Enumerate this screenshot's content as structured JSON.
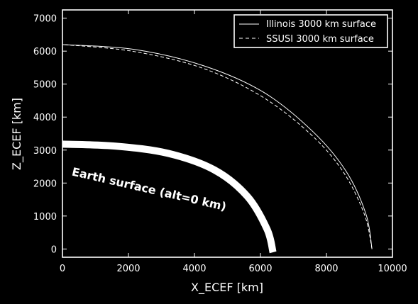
{
  "chart_data": {
    "type": "line",
    "xlabel": "X_ECEF [km]",
    "ylabel": "Z_ECEF [km]",
    "xlim": [
      0,
      10000
    ],
    "ylim": [
      -250,
      7250
    ],
    "xticks": [
      0,
      2000,
      4000,
      6000,
      8000,
      10000
    ],
    "yticks": [
      0,
      1000,
      2000,
      3000,
      4000,
      5000,
      6000,
      7000
    ],
    "grid": false,
    "legend_position": "top-right",
    "colors": {
      "background": "#000000",
      "foreground": "#ffffff"
    },
    "series": [
      {
        "name": "Illinois 3000 km surface",
        "style": "solid",
        "x": [
          9380,
          9200,
          8600,
          7600,
          6100,
          4300,
          2200,
          0
        ],
        "y": [
          0,
          1050,
          2350,
          3550,
          4750,
          5550,
          6050,
          6200
        ]
      },
      {
        "name": "SSUSI 3000 km surface",
        "style": "dashed",
        "x": [
          9380,
          9150,
          8500,
          7500,
          6000,
          4200,
          2100,
          0
        ],
        "y": [
          0,
          1050,
          2350,
          3500,
          4650,
          5500,
          6000,
          6200
        ]
      },
      {
        "name": "",
        "style": "thick",
        "x": [
          6380,
          6200,
          5600,
          4600,
          3200,
          1600,
          0
        ],
        "y": [
          -100,
          600,
          1600,
          2400,
          2900,
          3120,
          3180
        ]
      }
    ],
    "annotations": [
      {
        "text": "Earth surface (alt=0 km)",
        "x": 2600,
        "y": 1700,
        "rotation_deg": 13
      }
    ]
  }
}
